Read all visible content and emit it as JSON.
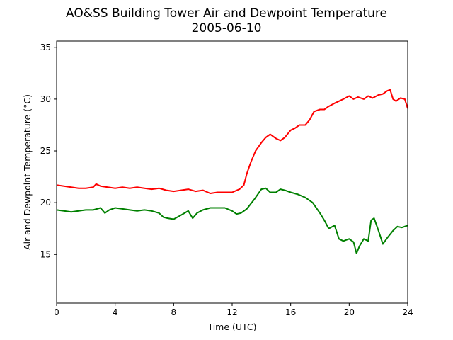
{
  "chart_data": {
    "type": "line",
    "title": "AO&SS Building Tower Air and Dewpoint Temperature",
    "subtitle": "2005-06-10",
    "xlabel": "Time (UTC)",
    "ylabel": "Air and Dewpoint Temperature (°C)",
    "xlim": [
      0,
      24
    ],
    "ylim": [
      10.3,
      35.6
    ],
    "x_ticks": [
      0,
      4,
      8,
      12,
      16,
      20,
      24
    ],
    "y_ticks": [
      15,
      20,
      25,
      30,
      35
    ],
    "grid": false,
    "legend": "none",
    "series": [
      {
        "color": "#ff0000",
        "x": [
          0,
          0.5,
          1,
          1.5,
          2,
          2.5,
          2.7,
          3,
          3.5,
          4,
          4.5,
          5,
          5.5,
          6,
          6.5,
          7,
          7.5,
          8,
          8.5,
          9,
          9.5,
          10,
          10.5,
          11,
          11.5,
          12,
          12.5,
          12.8,
          13,
          13.3,
          13.6,
          14,
          14.3,
          14.6,
          15,
          15.3,
          15.6,
          16,
          16.3,
          16.6,
          17,
          17.3,
          17.6,
          18,
          18.3,
          18.6,
          19,
          19.3,
          19.6,
          20,
          20.3,
          20.6,
          21,
          21.3,
          21.6,
          22,
          22.3,
          22.6,
          22.8,
          23,
          23.2,
          23.5,
          23.8,
          24
        ],
        "y": [
          21.7,
          21.6,
          21.5,
          21.4,
          21.4,
          21.5,
          21.8,
          21.6,
          21.5,
          21.4,
          21.5,
          21.4,
          21.5,
          21.4,
          21.3,
          21.4,
          21.2,
          21.1,
          21.2,
          21.3,
          21.1,
          21.2,
          20.9,
          21.0,
          21.0,
          21.0,
          21.3,
          21.7,
          22.8,
          24.0,
          25.0,
          25.8,
          26.3,
          26.6,
          26.2,
          26.0,
          26.3,
          27.0,
          27.2,
          27.5,
          27.5,
          28.0,
          28.8,
          29.0,
          29.0,
          29.3,
          29.6,
          29.8,
          30.0,
          30.3,
          30.0,
          30.2,
          30.0,
          30.3,
          30.1,
          30.4,
          30.5,
          30.8,
          30.9,
          30.0,
          29.8,
          30.1,
          30.0,
          29.1
        ]
      },
      {
        "color": "#008000",
        "x": [
          0,
          0.5,
          1,
          1.5,
          2,
          2.5,
          3,
          3.3,
          3.6,
          4,
          4.5,
          5,
          5.5,
          6,
          6.5,
          7,
          7.3,
          7.6,
          8,
          8.5,
          9,
          9.3,
          9.6,
          10,
          10.5,
          11,
          11.5,
          12,
          12.3,
          12.6,
          13,
          13.5,
          14,
          14.3,
          14.6,
          15,
          15.3,
          15.6,
          16,
          16.5,
          17,
          17.5,
          18,
          18.3,
          18.6,
          19,
          19.3,
          19.6,
          20,
          20.3,
          20.5,
          20.7,
          21,
          21.3,
          21.5,
          21.7,
          22,
          22.3,
          22.6,
          23,
          23.3,
          23.6,
          24
        ],
        "y": [
          19.3,
          19.2,
          19.1,
          19.2,
          19.3,
          19.3,
          19.5,
          19.0,
          19.3,
          19.5,
          19.4,
          19.3,
          19.2,
          19.3,
          19.2,
          19.0,
          18.6,
          18.5,
          18.4,
          18.8,
          19.2,
          18.5,
          19.0,
          19.3,
          19.5,
          19.5,
          19.5,
          19.2,
          18.9,
          19.0,
          19.4,
          20.3,
          21.3,
          21.4,
          21.0,
          21.0,
          21.3,
          21.2,
          21.0,
          20.8,
          20.5,
          20.0,
          19.0,
          18.3,
          17.5,
          17.8,
          16.5,
          16.3,
          16.5,
          16.2,
          15.1,
          15.8,
          16.5,
          16.3,
          18.3,
          18.5,
          17.3,
          16.0,
          16.6,
          17.3,
          17.7,
          17.6,
          17.8
        ]
      }
    ]
  }
}
